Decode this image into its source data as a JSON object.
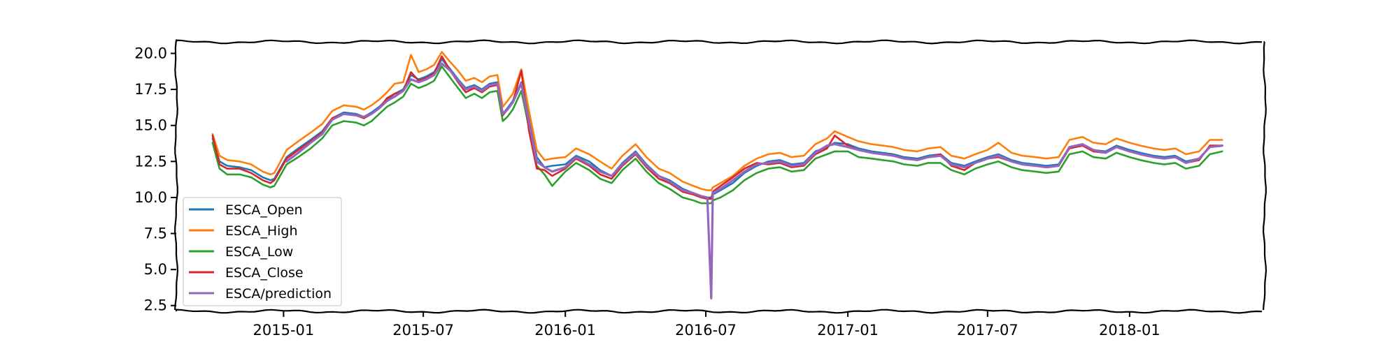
{
  "chart_data": {
    "type": "line",
    "title": "",
    "xlabel": "",
    "ylabel": "",
    "x_ticks": [
      "2015-01",
      "2015-07",
      "2016-01",
      "2016-07",
      "2017-01",
      "2017-07",
      "2018-01"
    ],
    "y_ticks": [
      "2.5",
      "5.0",
      "7.5",
      "10.0",
      "12.5",
      "15.0",
      "17.5",
      "20.0"
    ],
    "xlim": [
      "2014-08-15",
      "2018-06-25"
    ],
    "ylim": [
      2.1,
      20.8
    ],
    "grid": false,
    "legend_position": "lower-left",
    "x": [
      "2014-10-01",
      "2014-10-10",
      "2014-10-20",
      "2014-11-05",
      "2014-11-20",
      "2014-12-05",
      "2014-12-15",
      "2014-12-20",
      "2015-01-05",
      "2015-01-20",
      "2015-02-05",
      "2015-02-20",
      "2015-03-05",
      "2015-03-20",
      "2015-04-05",
      "2015-04-15",
      "2015-04-25",
      "2015-05-05",
      "2015-05-15",
      "2015-05-25",
      "2015-06-05",
      "2015-06-15",
      "2015-06-25",
      "2015-07-05",
      "2015-07-15",
      "2015-07-25",
      "2015-08-05",
      "2015-08-15",
      "2015-08-25",
      "2015-09-05",
      "2015-09-15",
      "2015-09-25",
      "2015-10-05",
      "2015-10-12",
      "2015-10-18",
      "2015-10-25",
      "2015-11-05",
      "2015-11-15",
      "2015-11-25",
      "2015-12-05",
      "2015-12-15",
      "2016-01-01",
      "2016-01-15",
      "2016-02-01",
      "2016-02-15",
      "2016-03-01",
      "2016-03-15",
      "2016-04-01",
      "2016-04-15",
      "2016-05-01",
      "2016-05-15",
      "2016-06-01",
      "2016-06-15",
      "2016-06-25",
      "2016-07-03",
      "2016-07-08",
      "2016-07-10",
      "2016-07-20",
      "2016-08-05",
      "2016-08-20",
      "2016-09-05",
      "2016-09-20",
      "2016-10-05",
      "2016-10-20",
      "2016-11-05",
      "2016-11-20",
      "2016-12-05",
      "2016-12-15",
      "2017-01-01",
      "2017-01-15",
      "2017-02-01",
      "2017-02-15",
      "2017-03-01",
      "2017-03-15",
      "2017-04-01",
      "2017-04-15",
      "2017-05-01",
      "2017-05-15",
      "2017-06-01",
      "2017-06-15",
      "2017-07-01",
      "2017-07-15",
      "2017-08-01",
      "2017-08-15",
      "2017-09-01",
      "2017-09-15",
      "2017-10-01",
      "2017-10-15",
      "2017-11-01",
      "2017-11-15",
      "2017-12-01",
      "2017-12-15",
      "2018-01-01",
      "2018-01-15",
      "2018-02-01",
      "2018-02-15",
      "2018-03-01",
      "2018-03-15",
      "2018-04-01",
      "2018-04-15",
      "2018-05-01"
    ],
    "series": [
      {
        "name": "ESCA_Open",
        "color": "#1f77b4",
        "values": [
          14.1,
          12.5,
          12.2,
          12.1,
          11.9,
          11.4,
          11.2,
          11.3,
          12.8,
          13.4,
          14.0,
          14.6,
          15.5,
          15.9,
          15.8,
          15.6,
          15.9,
          16.3,
          16.8,
          17.2,
          17.5,
          18.5,
          18.2,
          18.4,
          18.7,
          19.6,
          18.9,
          18.2,
          17.6,
          17.8,
          17.5,
          17.9,
          18.0,
          15.8,
          16.2,
          16.7,
          18.0,
          15.5,
          12.8,
          12.1,
          12.2,
          12.3,
          12.9,
          12.5,
          11.9,
          11.5,
          12.4,
          13.2,
          12.3,
          11.5,
          11.2,
          10.6,
          10.3,
          10.1,
          10.0,
          10.0,
          10.2,
          10.5,
          11.0,
          11.7,
          12.2,
          12.5,
          12.6,
          12.3,
          12.4,
          13.2,
          13.5,
          13.8,
          13.7,
          13.4,
          13.2,
          13.1,
          13.0,
          12.8,
          12.7,
          12.9,
          13.0,
          12.4,
          12.2,
          12.5,
          12.8,
          13.0,
          12.6,
          12.4,
          12.3,
          12.2,
          12.3,
          13.5,
          13.7,
          13.3,
          13.2,
          13.6,
          13.3,
          13.1,
          12.9,
          12.8,
          12.9,
          12.5,
          12.7,
          13.5,
          13.6
        ]
      },
      {
        "name": "ESCA_High",
        "color": "#ff7f0e",
        "values": [
          14.4,
          12.9,
          12.6,
          12.5,
          12.3,
          11.8,
          11.6,
          11.7,
          13.3,
          13.9,
          14.5,
          15.1,
          16.0,
          16.4,
          16.3,
          16.1,
          16.4,
          16.8,
          17.3,
          17.9,
          18.0,
          19.9,
          18.7,
          18.9,
          19.2,
          20.1,
          19.4,
          18.8,
          18.1,
          18.3,
          18.0,
          18.4,
          18.5,
          16.3,
          16.7,
          17.2,
          18.9,
          16.0,
          13.3,
          12.6,
          12.7,
          12.8,
          13.4,
          13.0,
          12.5,
          12.0,
          12.9,
          13.7,
          12.8,
          12.0,
          11.7,
          11.1,
          10.8,
          10.6,
          10.5,
          10.5,
          10.7,
          11.0,
          11.5,
          12.2,
          12.7,
          13.0,
          13.1,
          12.8,
          12.9,
          13.7,
          14.1,
          14.6,
          14.2,
          13.9,
          13.7,
          13.6,
          13.5,
          13.3,
          13.2,
          13.4,
          13.5,
          12.9,
          12.7,
          13.0,
          13.3,
          13.8,
          13.1,
          12.9,
          12.8,
          12.7,
          12.8,
          14.0,
          14.2,
          13.8,
          13.7,
          14.1,
          13.8,
          13.6,
          13.4,
          13.3,
          13.4,
          13.0,
          13.2,
          14.0,
          14.0
        ]
      },
      {
        "name": "ESCA_Low",
        "color": "#2ca02c",
        "values": [
          13.8,
          12.0,
          11.6,
          11.6,
          11.4,
          10.9,
          10.7,
          10.8,
          12.3,
          12.8,
          13.4,
          14.1,
          15.0,
          15.3,
          15.2,
          15.0,
          15.3,
          15.8,
          16.3,
          16.6,
          17.0,
          17.9,
          17.6,
          17.8,
          18.1,
          19.1,
          18.3,
          17.6,
          16.9,
          17.2,
          16.9,
          17.3,
          17.4,
          15.3,
          15.6,
          16.1,
          17.4,
          14.8,
          12.2,
          11.6,
          10.8,
          11.8,
          12.4,
          11.9,
          11.3,
          11.0,
          11.9,
          12.7,
          11.8,
          11.0,
          10.6,
          10.0,
          9.8,
          9.6,
          9.6,
          9.6,
          9.8,
          10.0,
          10.5,
          11.2,
          11.7,
          12.0,
          12.1,
          11.8,
          11.9,
          12.7,
          13.0,
          13.2,
          13.2,
          12.8,
          12.7,
          12.6,
          12.5,
          12.3,
          12.2,
          12.4,
          12.4,
          11.9,
          11.6,
          12.0,
          12.3,
          12.5,
          12.1,
          11.9,
          11.8,
          11.7,
          11.8,
          13.0,
          13.2,
          12.8,
          12.7,
          13.1,
          12.8,
          12.6,
          12.4,
          12.3,
          12.4,
          12.0,
          12.2,
          13.0,
          13.2
        ]
      },
      {
        "name": "ESCA_Close",
        "color": "#d62728",
        "values": [
          14.3,
          12.3,
          12.0,
          12.0,
          11.7,
          11.2,
          11.0,
          11.2,
          12.7,
          13.3,
          13.9,
          14.5,
          15.5,
          15.8,
          15.7,
          15.5,
          15.8,
          16.2,
          16.9,
          17.2,
          17.4,
          18.7,
          18.1,
          18.3,
          18.6,
          19.8,
          18.8,
          18.0,
          17.3,
          17.6,
          17.3,
          17.7,
          17.8,
          15.7,
          16.1,
          16.6,
          18.8,
          14.6,
          12.0,
          11.9,
          11.5,
          12.0,
          12.7,
          12.2,
          11.6,
          11.3,
          12.2,
          13.0,
          12.1,
          11.3,
          11.0,
          10.4,
          10.2,
          10.0,
          9.9,
          9.9,
          10.4,
          10.8,
          11.4,
          12.0,
          12.4,
          12.3,
          12.4,
          12.1,
          12.2,
          13.0,
          13.4,
          14.3,
          13.6,
          13.3,
          13.1,
          13.0,
          12.9,
          12.7,
          12.6,
          12.8,
          13.0,
          12.2,
          11.9,
          12.4,
          12.7,
          12.8,
          12.5,
          12.3,
          12.2,
          12.1,
          12.2,
          13.4,
          13.6,
          13.2,
          13.1,
          13.5,
          13.2,
          13.0,
          12.8,
          12.7,
          12.8,
          12.4,
          12.6,
          13.6,
          13.6
        ]
      },
      {
        "name": "ESCA/prediction",
        "color": "#9467bd",
        "values": [
          null,
          null,
          null,
          null,
          null,
          null,
          null,
          null,
          12.5,
          13.1,
          13.8,
          14.4,
          15.4,
          15.8,
          15.7,
          15.6,
          15.8,
          16.2,
          16.7,
          17.0,
          17.4,
          18.2,
          18.0,
          18.2,
          18.5,
          19.3,
          18.8,
          18.1,
          17.5,
          17.7,
          17.4,
          17.8,
          17.9,
          15.8,
          16.1,
          16.6,
          17.9,
          15.2,
          12.5,
          12.1,
          11.8,
          12.1,
          12.8,
          12.3,
          11.8,
          11.5,
          12.3,
          13.1,
          12.2,
          11.5,
          11.1,
          10.5,
          10.3,
          10.1,
          10.0,
          3.0,
          10.3,
          10.6,
          11.2,
          11.8,
          12.3,
          12.4,
          12.5,
          12.2,
          12.3,
          13.1,
          13.6,
          13.7,
          13.5,
          13.3,
          13.1,
          13.0,
          12.9,
          12.7,
          12.6,
          12.8,
          12.9,
          12.3,
          12.1,
          12.4,
          12.7,
          12.9,
          12.5,
          12.3,
          12.2,
          12.1,
          12.2,
          13.5,
          13.7,
          13.3,
          13.1,
          13.5,
          13.2,
          13.0,
          12.8,
          12.7,
          12.8,
          12.4,
          12.7,
          13.5,
          13.6
        ]
      }
    ]
  }
}
